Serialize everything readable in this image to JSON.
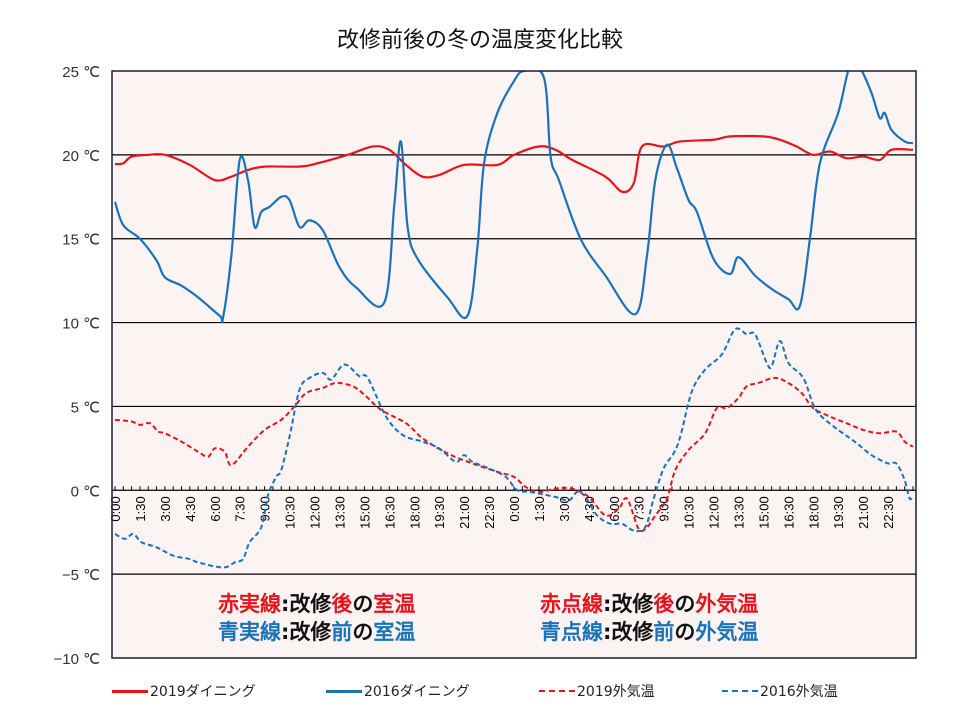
{
  "chart_data": {
    "type": "line",
    "title": "改修前後の冬の温度変化比較",
    "xlabel": "",
    "ylabel": "",
    "ylim": [
      -10,
      25
    ],
    "xlim_hours": [
      0,
      48
    ],
    "y_ticks": [
      25,
      20,
      15,
      10,
      5,
      0,
      -5,
      -10
    ],
    "y_tick_labels": [
      "25 ℃",
      "20 ℃",
      "15 ℃",
      "10 ℃",
      "5 ℃",
      "0 ℃",
      "−5 ℃",
      "−10 ℃"
    ],
    "x_tick_labels": [
      "0:00",
      "1:30",
      "3:00",
      "4:30",
      "6:00",
      "7:30",
      "9:00",
      "10:30",
      "12:00",
      "13:30",
      "15:00",
      "16:30",
      "18:00",
      "19:30",
      "21:00",
      "22:30",
      "0:00",
      "1:30",
      "3:00",
      "4:30",
      "6:00",
      "7:30",
      "9:00",
      "10:30",
      "12:00",
      "13:30",
      "15:00",
      "16:30",
      "18:00",
      "19:30",
      "21:00",
      "22:30"
    ],
    "x_label_interval_hours": 1.5,
    "minor_tick_interval_hours": 0.5,
    "grid": "horizontal",
    "legend_position": "bottom",
    "series": [
      {
        "name": "2019ダイニング",
        "color": "#e8141c",
        "style": "solid",
        "points": [
          [
            0,
            19.45
          ],
          [
            0.5,
            19.5
          ],
          [
            1,
            19.9
          ],
          [
            2,
            20
          ],
          [
            3,
            20
          ],
          [
            4.5,
            19.4
          ],
          [
            6,
            18.5
          ],
          [
            7,
            18.7
          ],
          [
            8,
            19.1
          ],
          [
            9,
            19.3
          ],
          [
            11,
            19.3
          ],
          [
            12,
            19.45
          ],
          [
            14,
            20
          ],
          [
            15.5,
            20.5
          ],
          [
            16.5,
            20.3
          ],
          [
            17.5,
            19.4
          ],
          [
            18.5,
            18.7
          ],
          [
            19.5,
            18.8
          ],
          [
            21,
            19.4
          ],
          [
            23,
            19.4
          ],
          [
            24,
            20
          ],
          [
            25.5,
            20.5
          ],
          [
            26.5,
            20.3
          ],
          [
            27.5,
            19.7
          ],
          [
            29.5,
            18.7
          ],
          [
            30.5,
            17.8
          ],
          [
            31.2,
            18.3
          ],
          [
            31.7,
            20.5
          ],
          [
            33,
            20.5
          ],
          [
            34,
            20.8
          ],
          [
            36,
            20.9
          ],
          [
            37,
            21.1
          ],
          [
            39,
            21.1
          ],
          [
            40,
            20.9
          ],
          [
            41,
            20.5
          ],
          [
            42,
            20
          ],
          [
            43,
            20.2
          ],
          [
            44,
            19.8
          ],
          [
            45,
            19.9
          ],
          [
            46,
            19.7
          ],
          [
            46.7,
            20.3
          ],
          [
            48,
            20.3
          ]
        ]
      },
      {
        "name": "2016ダイニング",
        "color": "#1a72b8",
        "style": "solid",
        "points": [
          [
            0,
            17.2
          ],
          [
            0.5,
            15.8
          ],
          [
            1.5,
            15
          ],
          [
            2.5,
            13.7
          ],
          [
            3,
            12.7
          ],
          [
            4,
            12.2
          ],
          [
            5,
            11.5
          ],
          [
            6.3,
            10.4
          ],
          [
            6.5,
            10.3
          ],
          [
            7,
            14
          ],
          [
            7.5,
            19.7
          ],
          [
            8,
            18.5
          ],
          [
            8.4,
            15.7
          ],
          [
            8.8,
            16.6
          ],
          [
            9.3,
            16.9
          ],
          [
            10,
            17.5
          ],
          [
            10.5,
            17.3
          ],
          [
            11.1,
            15.7
          ],
          [
            11.7,
            16.1
          ],
          [
            12.5,
            15.5
          ],
          [
            13.5,
            13.3
          ],
          [
            14.5,
            12.1
          ],
          [
            16.2,
            11.2
          ],
          [
            16.8,
            17
          ],
          [
            17.2,
            20.8
          ],
          [
            17.6,
            15.7
          ],
          [
            18.2,
            13.8
          ],
          [
            20,
            11.5
          ],
          [
            21.2,
            10.4
          ],
          [
            21.8,
            14.5
          ],
          [
            22.2,
            19.5
          ],
          [
            23,
            22.5
          ],
          [
            24,
            24.4
          ],
          [
            24.6,
            25
          ],
          [
            25.8,
            24.6
          ],
          [
            26.2,
            19.9
          ],
          [
            26.7,
            18.5
          ],
          [
            28,
            15
          ],
          [
            29.5,
            12.8
          ],
          [
            31.3,
            10.5
          ],
          [
            32,
            14
          ],
          [
            32.5,
            18.5
          ],
          [
            33.2,
            20.6
          ],
          [
            33.8,
            19.2
          ],
          [
            34.5,
            17.3
          ],
          [
            35,
            16.6
          ],
          [
            36,
            13.8
          ],
          [
            37,
            12.9
          ],
          [
            37.5,
            13.9
          ],
          [
            38.5,
            12.8
          ],
          [
            39.5,
            12
          ],
          [
            40.5,
            11.4
          ],
          [
            41.2,
            11
          ],
          [
            41.8,
            15
          ],
          [
            42.4,
            19.5
          ],
          [
            43.5,
            22.5
          ],
          [
            44.2,
            25.5
          ],
          [
            44.8,
            25.2
          ],
          [
            45.5,
            23.7
          ],
          [
            46,
            22.2
          ],
          [
            46.3,
            22.5
          ],
          [
            46.7,
            21.5
          ],
          [
            47.5,
            20.8
          ],
          [
            48,
            20.7
          ]
        ]
      },
      {
        "name": "2019外気温",
        "color": "#e8141c",
        "style": "dashed",
        "points": [
          [
            0,
            4.2
          ],
          [
            1,
            4.1
          ],
          [
            1.5,
            3.9
          ],
          [
            2.1,
            4
          ],
          [
            2.6,
            3.5
          ],
          [
            3,
            3.4
          ],
          [
            4,
            2.9
          ],
          [
            5,
            2.3
          ],
          [
            5.6,
            2
          ],
          [
            6,
            2.5
          ],
          [
            6.6,
            2.3
          ],
          [
            7,
            1.5
          ],
          [
            8,
            2.6
          ],
          [
            9,
            3.6
          ],
          [
            10,
            4.2
          ],
          [
            10.8,
            5
          ],
          [
            11.5,
            5.8
          ],
          [
            12.5,
            6.1
          ],
          [
            13.3,
            6.4
          ],
          [
            14.3,
            6.2
          ],
          [
            15,
            5.7
          ],
          [
            16,
            4.8
          ],
          [
            17.5,
            4
          ],
          [
            18.5,
            3.1
          ],
          [
            20,
            2.2
          ],
          [
            21.5,
            1.6
          ],
          [
            23,
            1.1
          ],
          [
            24,
            0.8
          ],
          [
            24.7,
            0.2
          ],
          [
            25.5,
            -0.1
          ],
          [
            26.5,
            0.1
          ],
          [
            27.5,
            0.1
          ],
          [
            28.5,
            -0.4
          ],
          [
            29.5,
            -1.5
          ],
          [
            30.3,
            -1.1
          ],
          [
            30.8,
            -0.5
          ],
          [
            31.5,
            -2.3
          ],
          [
            32,
            -2.2
          ],
          [
            32.5,
            -1.5
          ],
          [
            33.2,
            -0.5
          ],
          [
            33.7,
            1.2
          ],
          [
            34.5,
            2.4
          ],
          [
            35.5,
            3.4
          ],
          [
            36.2,
            4.9
          ],
          [
            36.8,
            4.9
          ],
          [
            37.5,
            5.5
          ],
          [
            38,
            6.2
          ],
          [
            38.7,
            6.4
          ],
          [
            39.7,
            6.7
          ],
          [
            40.5,
            6.4
          ],
          [
            41.3,
            5.8
          ],
          [
            42,
            4.9
          ],
          [
            43,
            4.4
          ],
          [
            44,
            4
          ],
          [
            45,
            3.6
          ],
          [
            46,
            3.4
          ],
          [
            47,
            3.5
          ],
          [
            47.5,
            2.9
          ],
          [
            48,
            2.6
          ]
        ]
      },
      {
        "name": "2016外気温",
        "color": "#1a72b8",
        "style": "dashed",
        "points": [
          [
            0,
            -2.6
          ],
          [
            0.6,
            -2.9
          ],
          [
            1.1,
            -2.6
          ],
          [
            1.6,
            -3.1
          ],
          [
            2.5,
            -3.4
          ],
          [
            3.5,
            -3.9
          ],
          [
            4.5,
            -4.1
          ],
          [
            5,
            -4.3
          ],
          [
            6.5,
            -4.6
          ],
          [
            7.2,
            -4.3
          ],
          [
            7.7,
            -4.1
          ],
          [
            8.1,
            -3.1
          ],
          [
            8.8,
            -2.2
          ],
          [
            9.2,
            -0.3
          ],
          [
            9.7,
            0.8
          ],
          [
            10,
            1.2
          ],
          [
            10.5,
            3.2
          ],
          [
            11.1,
            6
          ],
          [
            11.7,
            6.7
          ],
          [
            12.5,
            7
          ],
          [
            13,
            6.6
          ],
          [
            13.8,
            7.5
          ],
          [
            14.7,
            6.8
          ],
          [
            15.2,
            6.7
          ],
          [
            16.3,
            4.4
          ],
          [
            17.3,
            3.3
          ],
          [
            18.5,
            2.9
          ],
          [
            19.5,
            2.5
          ],
          [
            20.5,
            1.7
          ],
          [
            21,
            2.1
          ],
          [
            21.5,
            1.7
          ],
          [
            22.5,
            1.3
          ],
          [
            23.5,
            0.8
          ],
          [
            24.2,
            0
          ],
          [
            25,
            -0.1
          ],
          [
            26.5,
            -0.4
          ],
          [
            27.3,
            -0.6
          ],
          [
            27.8,
            -0.1
          ],
          [
            28.3,
            -0.4
          ],
          [
            29,
            -1.5
          ],
          [
            29.8,
            -2
          ],
          [
            30.5,
            -2
          ],
          [
            31.2,
            -2.4
          ],
          [
            31.9,
            -2.2
          ],
          [
            32.4,
            -0.5
          ],
          [
            33,
            1.3
          ],
          [
            33.6,
            2.2
          ],
          [
            34,
            3.2
          ],
          [
            34.7,
            5.9
          ],
          [
            35.5,
            7.2
          ],
          [
            36.5,
            8.1
          ],
          [
            37.3,
            9.6
          ],
          [
            38,
            9.3
          ],
          [
            38.5,
            9.3
          ],
          [
            39.2,
            7.6
          ],
          [
            39.5,
            7.4
          ],
          [
            40,
            8.9
          ],
          [
            40.5,
            7.6
          ],
          [
            41.4,
            6.7
          ],
          [
            42,
            5.1
          ],
          [
            42.5,
            4.4
          ],
          [
            43.5,
            3.6
          ],
          [
            44.5,
            2.9
          ],
          [
            45.5,
            2.1
          ],
          [
            46.5,
            1.6
          ],
          [
            47,
            1.6
          ],
          [
            47.5,
            0.6
          ],
          [
            47.8,
            -0.5
          ],
          [
            48,
            -0.3
          ]
        ]
      }
    ],
    "annotations": [
      {
        "parts": [
          {
            "text": "赤実線",
            "color": "red"
          },
          {
            "text": ":改修",
            "color": "black"
          },
          {
            "text": "後",
            "color": "red"
          },
          {
            "text": "の",
            "color": "black"
          },
          {
            "text": "室温",
            "color": "red"
          }
        ]
      },
      {
        "parts": [
          {
            "text": "青実線",
            "color": "blue"
          },
          {
            "text": ":改修",
            "color": "black"
          },
          {
            "text": "前",
            "color": "blue"
          },
          {
            "text": "の",
            "color": "black"
          },
          {
            "text": "室温",
            "color": "blue"
          }
        ]
      },
      {
        "parts": [
          {
            "text": "赤点線",
            "color": "red"
          },
          {
            "text": ":改修",
            "color": "black"
          },
          {
            "text": "後",
            "color": "red"
          },
          {
            "text": "の",
            "color": "black"
          },
          {
            "text": "外気温",
            "color": "red"
          }
        ]
      },
      {
        "parts": [
          {
            "text": "青点線",
            "color": "blue"
          },
          {
            "text": ":改修",
            "color": "black"
          },
          {
            "text": "前",
            "color": "blue"
          },
          {
            "text": "の",
            "color": "black"
          },
          {
            "text": "外気温",
            "color": "blue"
          }
        ]
      }
    ]
  },
  "colors": {
    "red": "#e8141c",
    "blue": "#1a72b8",
    "plot_bg": "#fcf3f3"
  }
}
